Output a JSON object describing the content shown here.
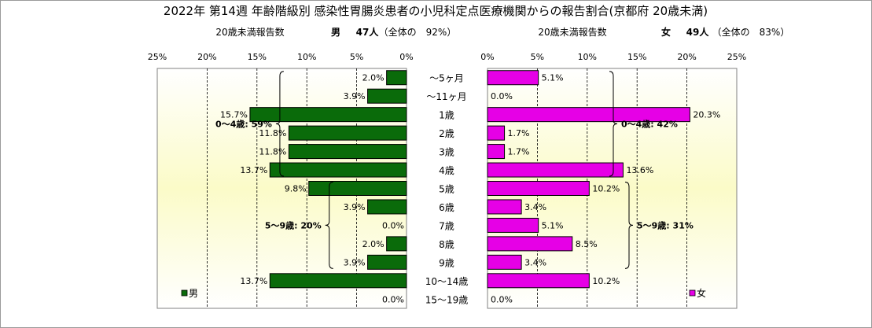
{
  "chart_data": {
    "type": "bar",
    "title": "2022年 第14週 年齢階級別 感染性胃腸炎患者の小児科定点医療機関からの報告割合(京都府 20歳未満)",
    "categories": [
      "～5ヶ月",
      "～11ヶ月",
      "1歳",
      "2歳",
      "3歳",
      "4歳",
      "5歳",
      "6歳",
      "7歳",
      "8歳",
      "9歳",
      "10～14歳",
      "15～19歳"
    ],
    "xlim": [
      0,
      25
    ],
    "x_ticks": [
      "0%",
      "5%",
      "10%",
      "15%",
      "20%",
      "25%"
    ],
    "grid": true,
    "series": [
      {
        "name": "男",
        "subtitle": {
          "report_label": "20歳未満報告数",
          "sex": "男",
          "count": "47人",
          "share": "（全体の　92%）"
        },
        "values": [
          2.0,
          3.9,
          15.7,
          11.8,
          11.8,
          13.7,
          9.8,
          3.9,
          0.0,
          2.0,
          3.9,
          13.7,
          0.0
        ],
        "value_labels": [
          "2.0%",
          "3.9%",
          "15.7%",
          "11.8%",
          "11.8%",
          "13.7%",
          "9.8%",
          "3.9%",
          "0.0%",
          "2.0%",
          "3.9%",
          "13.7%",
          "0.0%"
        ],
        "color": "#0a6b0a",
        "groups": [
          {
            "label": "0～4歳: 59%",
            "from": 0,
            "to": 5
          },
          {
            "label": "5～9歳: 20%",
            "from": 6,
            "to": 10
          }
        ]
      },
      {
        "name": "女",
        "subtitle": {
          "report_label": "20歳未満報告数",
          "sex": "女",
          "count": "49人",
          "share": "（全体の　83%）"
        },
        "values": [
          5.1,
          0.0,
          20.3,
          1.7,
          1.7,
          13.6,
          10.2,
          3.4,
          5.1,
          8.5,
          3.4,
          10.2,
          0.0
        ],
        "value_labels": [
          "5.1%",
          "0.0%",
          "20.3%",
          "1.7%",
          "1.7%",
          "13.6%",
          "10.2%",
          "3.4%",
          "5.1%",
          "8.5%",
          "3.4%",
          "10.2%",
          "0.0%"
        ],
        "color": "#e600e6",
        "groups": [
          {
            "label": "0～4歳: 42%",
            "from": 0,
            "to": 5
          },
          {
            "label": "5～9歳: 31%",
            "from": 6,
            "to": 10
          }
        ]
      }
    ]
  }
}
